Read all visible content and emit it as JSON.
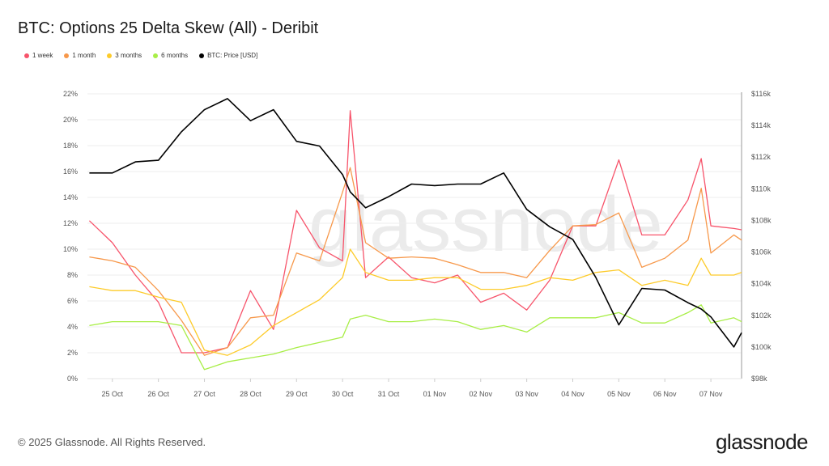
{
  "title": "BTC: Options 25 Delta Skew (All) - Deribit",
  "footer": "© 2025 Glassnode. All Rights Reserved.",
  "logo": "glassnode",
  "watermark": "glassnode",
  "chart_data": {
    "type": "line",
    "title": "BTC: Options 25 Delta Skew (All) - Deribit",
    "legend_position": "top-left",
    "grid": true,
    "x_tick_labels": [
      "25 Oct",
      "26 Oct",
      "27 Oct",
      "28 Oct",
      "29 Oct",
      "30 Oct",
      "31 Oct",
      "01 Nov",
      "02 Nov",
      "03 Nov",
      "04 Nov",
      "05 Nov",
      "06 Nov",
      "07 Nov"
    ],
    "x_tick_dates": [
      "2025-10-25 00:00",
      "2025-10-26 00:00",
      "2025-10-27 00:00",
      "2025-10-28 00:00",
      "2025-10-29 00:00",
      "2025-10-30 00:00",
      "2025-10-31 00:00",
      "2025-11-01 00:00",
      "2025-11-02 00:00",
      "2025-11-03 00:00",
      "2025-11-04 00:00",
      "2025-11-05 00:00",
      "2025-11-06 00:00",
      "2025-11-07 00:00"
    ],
    "xlim": [
      "2025-10-24 11:00",
      "2025-11-07 16:00"
    ],
    "y_left": {
      "ylim": [
        0,
        22
      ],
      "ticks": [
        0,
        2,
        4,
        6,
        8,
        10,
        12,
        14,
        16,
        18,
        20,
        22
      ],
      "tick_labels": [
        "0%",
        "2%",
        "4%",
        "6%",
        "8%",
        "10%",
        "12%",
        "14%",
        "16%",
        "18%",
        "20%",
        "22%"
      ]
    },
    "y_right": {
      "ylim": [
        98,
        116
      ],
      "ticks": [
        98,
        100,
        102,
        104,
        106,
        108,
        110,
        112,
        114,
        116
      ],
      "tick_labels": [
        "$98k",
        "$100k",
        "$102k",
        "$104k",
        "$106k",
        "$108k",
        "$110k",
        "$112k",
        "$114k",
        "$116k"
      ]
    },
    "x": [
      "2025-10-24 12:00",
      "2025-10-25 00:00",
      "2025-10-25 12:00",
      "2025-10-26 00:00",
      "2025-10-26 12:00",
      "2025-10-27 00:00",
      "2025-10-27 12:00",
      "2025-10-28 00:00",
      "2025-10-28 12:00",
      "2025-10-29 00:00",
      "2025-10-29 12:00",
      "2025-10-30 00:00",
      "2025-10-30 04:00",
      "2025-10-30 12:00",
      "2025-10-31 00:00",
      "2025-10-31 12:00",
      "2025-11-01 00:00",
      "2025-11-01 12:00",
      "2025-11-02 00:00",
      "2025-11-02 12:00",
      "2025-11-03 00:00",
      "2025-11-03 12:00",
      "2025-11-04 00:00",
      "2025-11-04 12:00",
      "2025-11-05 00:00",
      "2025-11-05 12:00",
      "2025-11-06 00:00",
      "2025-11-06 12:00",
      "2025-11-06 19:00",
      "2025-11-07 00:00",
      "2025-11-07 12:00",
      "2025-11-07 16:00"
    ],
    "series": [
      {
        "name": "1 week",
        "color": "#f7546b",
        "axis": "left",
        "values": [
          12.2,
          10.5,
          8.0,
          5.9,
          2.0,
          2.0,
          2.4,
          6.8,
          3.8,
          13.0,
          10.1,
          9.1,
          20.7,
          7.8,
          9.4,
          7.8,
          7.4,
          8.0,
          5.9,
          6.6,
          5.3,
          7.6,
          11.8,
          11.8,
          16.9,
          11.1,
          11.1,
          13.8,
          17.0,
          11.8,
          11.6,
          11.5
        ]
      },
      {
        "name": "1 month",
        "color": "#f7984a",
        "axis": "left",
        "values": [
          9.4,
          9.1,
          8.6,
          6.8,
          4.5,
          1.8,
          2.4,
          4.7,
          4.9,
          9.7,
          9.1,
          14.4,
          16.3,
          10.5,
          9.3,
          9.4,
          9.3,
          8.8,
          8.2,
          8.2,
          7.8,
          9.9,
          11.8,
          11.9,
          12.8,
          8.6,
          9.3,
          10.7,
          14.7,
          9.7,
          11.1,
          10.7
        ]
      },
      {
        "name": "3 months",
        "color": "#fdcb2a",
        "axis": "left",
        "values": [
          7.1,
          6.8,
          6.8,
          6.3,
          5.9,
          2.2,
          1.8,
          2.6,
          4.1,
          5.1,
          6.1,
          7.8,
          10.0,
          8.2,
          7.6,
          7.6,
          7.8,
          7.8,
          6.9,
          6.9,
          7.2,
          7.8,
          7.6,
          8.2,
          8.4,
          7.2,
          7.6,
          7.2,
          9.3,
          8.0,
          8.0,
          8.2
        ]
      },
      {
        "name": "6 months",
        "color": "#a8ee46",
        "axis": "left",
        "values": [
          4.1,
          4.4,
          4.4,
          4.4,
          4.1,
          0.7,
          1.3,
          1.6,
          1.9,
          2.4,
          2.8,
          3.2,
          4.6,
          4.9,
          4.4,
          4.4,
          4.6,
          4.4,
          3.8,
          4.1,
          3.6,
          4.7,
          4.7,
          4.7,
          5.1,
          4.3,
          4.3,
          5.1,
          5.7,
          4.3,
          4.7,
          4.4
        ]
      },
      {
        "name": "BTC: Price [USD]",
        "color": "#000000",
        "axis": "right",
        "values": [
          111.0,
          111.0,
          111.7,
          111.8,
          113.6,
          115.0,
          115.7,
          114.3,
          115.0,
          113.0,
          112.7,
          110.9,
          109.8,
          108.8,
          109.5,
          110.3,
          110.2,
          110.3,
          110.3,
          111.0,
          108.7,
          107.6,
          106.8,
          104.4,
          101.4,
          103.7,
          103.6,
          102.8,
          102.4,
          101.9,
          100.0,
          100.9
        ]
      }
    ]
  }
}
